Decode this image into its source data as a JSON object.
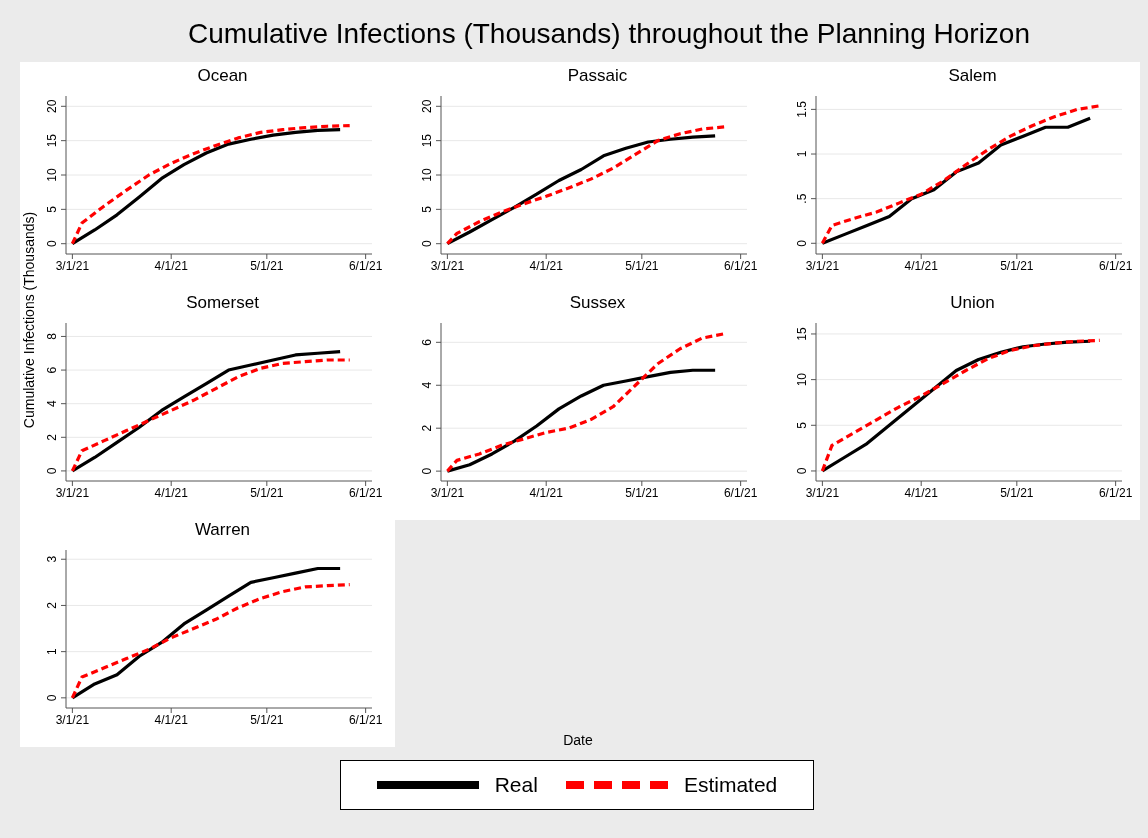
{
  "chart_data": [
    {
      "type": "other",
      "title": "Cumulative Infections (Thousands) throughout the Planning Horizon",
      "xlabel": "Date",
      "ylabel": "Cumulative Infections (Thousands)"
    },
    {
      "type": "line",
      "title": "Ocean",
      "legend": "bottom",
      "xlim": [
        "2021-02-27",
        "2021-06-03"
      ],
      "xticks": [
        {
          "value": "2021-03-01",
          "label": "3/1/21"
        },
        {
          "value": "2021-04-01",
          "label": "4/1/21"
        },
        {
          "value": "2021-05-01",
          "label": "5/1/21"
        },
        {
          "value": "2021-06-01",
          "label": "6/1/21"
        }
      ],
      "ylim": [
        -1.5,
        21.5
      ],
      "yticks": [
        0,
        5,
        10,
        15,
        20
      ],
      "grid": "y",
      "series": [
        {
          "name": "Real",
          "color": "#000000",
          "line_style": "solid",
          "x": [
            "2021-03-01",
            "2021-03-08",
            "2021-03-15",
            "2021-03-22",
            "2021-03-29",
            "2021-04-05",
            "2021-04-12",
            "2021-04-19",
            "2021-04-26",
            "2021-05-03",
            "2021-05-10",
            "2021-05-17",
            "2021-05-24"
          ],
          "values": [
            0,
            2,
            4.2,
            6.8,
            9.5,
            11.5,
            13.2,
            14.5,
            15.2,
            15.8,
            16.2,
            16.5,
            16.6
          ]
        },
        {
          "name": "Estimated",
          "color": "#ff0000",
          "line_style": "dashed",
          "x": [
            "2021-03-01",
            "2021-03-04",
            "2021-03-11",
            "2021-03-18",
            "2021-03-25",
            "2021-04-01",
            "2021-04-08",
            "2021-04-15",
            "2021-04-22",
            "2021-04-29",
            "2021-05-06",
            "2021-05-13",
            "2021-05-20",
            "2021-05-27"
          ],
          "values": [
            0,
            3,
            5.5,
            7.8,
            10,
            11.7,
            13.1,
            14.3,
            15.4,
            16.2,
            16.6,
            16.9,
            17.1,
            17.2
          ]
        }
      ]
    },
    {
      "type": "line",
      "title": "Passaic",
      "xlim": [
        "2021-02-27",
        "2021-06-03"
      ],
      "xticks": [
        {
          "value": "2021-03-01",
          "label": "3/1/21"
        },
        {
          "value": "2021-04-01",
          "label": "4/1/21"
        },
        {
          "value": "2021-05-01",
          "label": "5/1/21"
        },
        {
          "value": "2021-06-01",
          "label": "6/1/21"
        }
      ],
      "ylim": [
        -1.5,
        21.5
      ],
      "yticks": [
        0,
        5,
        10,
        15,
        20
      ],
      "grid": "y",
      "series": [
        {
          "color": "#000000",
          "line_style": "solid",
          "x": [
            "2021-03-01",
            "2021-03-08",
            "2021-03-15",
            "2021-03-22",
            "2021-03-29",
            "2021-04-05",
            "2021-04-12",
            "2021-04-19",
            "2021-04-26",
            "2021-05-03",
            "2021-05-10",
            "2021-05-17",
            "2021-05-24"
          ],
          "values": [
            0,
            1.7,
            3.5,
            5.3,
            7.2,
            9.2,
            10.8,
            12.8,
            13.9,
            14.8,
            15.2,
            15.5,
            15.7
          ]
        },
        {
          "color": "#ff0000",
          "line_style": "dashed",
          "x": [
            "2021-03-01",
            "2021-03-04",
            "2021-03-11",
            "2021-03-18",
            "2021-03-25",
            "2021-04-01",
            "2021-04-08",
            "2021-04-15",
            "2021-04-22",
            "2021-04-29",
            "2021-05-06",
            "2021-05-13",
            "2021-05-20",
            "2021-05-27"
          ],
          "values": [
            0,
            1.5,
            3.2,
            4.6,
            5.8,
            6.9,
            8.1,
            9.4,
            11,
            13,
            15,
            16,
            16.7,
            17
          ]
        }
      ]
    },
    {
      "type": "line",
      "title": "Salem",
      "xlim": [
        "2021-02-27",
        "2021-06-03"
      ],
      "xticks": [
        {
          "value": "2021-03-01",
          "label": "3/1/21"
        },
        {
          "value": "2021-04-01",
          "label": "4/1/21"
        },
        {
          "value": "2021-05-01",
          "label": "5/1/21"
        },
        {
          "value": "2021-06-01",
          "label": "6/1/21"
        }
      ],
      "ylim": [
        -0.12,
        1.65
      ],
      "yticks": [
        0,
        {
          "value": 0.5,
          "label": ".5"
        },
        1,
        1.5
      ],
      "grid": "y",
      "series": [
        {
          "color": "#000000",
          "line_style": "solid",
          "x": [
            "2021-03-01",
            "2021-03-08",
            "2021-03-15",
            "2021-03-22",
            "2021-03-29",
            "2021-04-05",
            "2021-04-12",
            "2021-04-19",
            "2021-04-26",
            "2021-05-03",
            "2021-05-10",
            "2021-05-17",
            "2021-05-24"
          ],
          "values": [
            0,
            0.1,
            0.2,
            0.3,
            0.5,
            0.6,
            0.8,
            0.9,
            1.1,
            1.2,
            1.3,
            1.3,
            1.4
          ]
        },
        {
          "color": "#ff0000",
          "line_style": "dashed",
          "x": [
            "2021-03-01",
            "2021-03-04",
            "2021-03-11",
            "2021-03-18",
            "2021-03-25",
            "2021-04-01",
            "2021-04-08",
            "2021-04-15",
            "2021-04-22",
            "2021-04-29",
            "2021-05-06",
            "2021-05-13",
            "2021-05-20",
            "2021-05-27"
          ],
          "values": [
            0,
            0.2,
            0.28,
            0.35,
            0.45,
            0.55,
            0.7,
            0.88,
            1.05,
            1.2,
            1.32,
            1.42,
            1.5,
            1.54
          ]
        }
      ]
    },
    {
      "type": "line",
      "title": "Somerset",
      "xlim": [
        "2021-02-27",
        "2021-06-03"
      ],
      "xticks": [
        {
          "value": "2021-03-01",
          "label": "3/1/21"
        },
        {
          "value": "2021-04-01",
          "label": "4/1/21"
        },
        {
          "value": "2021-05-01",
          "label": "5/1/21"
        },
        {
          "value": "2021-06-01",
          "label": "6/1/21"
        }
      ],
      "ylim": [
        -0.6,
        8.8
      ],
      "yticks": [
        0,
        2,
        4,
        6,
        8
      ],
      "grid": "y",
      "series": [
        {
          "color": "#000000",
          "line_style": "solid",
          "x": [
            "2021-03-01",
            "2021-03-08",
            "2021-03-15",
            "2021-03-22",
            "2021-03-29",
            "2021-04-05",
            "2021-04-12",
            "2021-04-19",
            "2021-04-26",
            "2021-05-03",
            "2021-05-10",
            "2021-05-17",
            "2021-05-24"
          ],
          "values": [
            0,
            0.8,
            1.7,
            2.6,
            3.6,
            4.4,
            5.2,
            6,
            6.3,
            6.6,
            6.9,
            7,
            7.1
          ]
        },
        {
          "color": "#ff0000",
          "line_style": "dashed",
          "x": [
            "2021-03-01",
            "2021-03-04",
            "2021-03-11",
            "2021-03-18",
            "2021-03-25",
            "2021-04-01",
            "2021-04-08",
            "2021-04-15",
            "2021-04-22",
            "2021-04-29",
            "2021-05-06",
            "2021-05-13",
            "2021-05-20",
            "2021-05-27"
          ],
          "values": [
            0,
            1.2,
            1.8,
            2.4,
            3,
            3.6,
            4.2,
            4.9,
            5.6,
            6.1,
            6.4,
            6.5,
            6.6,
            6.6
          ]
        }
      ]
    },
    {
      "type": "line",
      "title": "Sussex",
      "xlim": [
        "2021-02-27",
        "2021-06-03"
      ],
      "xticks": [
        {
          "value": "2021-03-01",
          "label": "3/1/21"
        },
        {
          "value": "2021-04-01",
          "label": "4/1/21"
        },
        {
          "value": "2021-05-01",
          "label": "5/1/21"
        },
        {
          "value": "2021-06-01",
          "label": "6/1/21"
        }
      ],
      "ylim": [
        -0.46,
        6.9
      ],
      "yticks": [
        0,
        2,
        4,
        6
      ],
      "grid": "y",
      "series": [
        {
          "color": "#000000",
          "line_style": "solid",
          "x": [
            "2021-03-01",
            "2021-03-08",
            "2021-03-15",
            "2021-03-22",
            "2021-03-29",
            "2021-04-05",
            "2021-04-12",
            "2021-04-19",
            "2021-04-26",
            "2021-05-03",
            "2021-05-10",
            "2021-05-17",
            "2021-05-24"
          ],
          "values": [
            0,
            0.3,
            0.8,
            1.4,
            2.1,
            2.9,
            3.5,
            4,
            4.2,
            4.4,
            4.6,
            4.7,
            4.7
          ]
        },
        {
          "color": "#ff0000",
          "line_style": "dashed",
          "x": [
            "2021-03-01",
            "2021-03-04",
            "2021-03-11",
            "2021-03-18",
            "2021-03-25",
            "2021-04-01",
            "2021-04-08",
            "2021-04-15",
            "2021-04-22",
            "2021-04-29",
            "2021-05-06",
            "2021-05-13",
            "2021-05-20",
            "2021-05-27"
          ],
          "values": [
            0,
            0.5,
            0.8,
            1.2,
            1.5,
            1.8,
            2,
            2.4,
            3,
            4,
            5,
            5.7,
            6.2,
            6.4
          ]
        }
      ]
    },
    {
      "type": "line",
      "title": "Union",
      "xlim": [
        "2021-02-27",
        "2021-06-03"
      ],
      "xticks": [
        {
          "value": "2021-03-01",
          "label": "3/1/21"
        },
        {
          "value": "2021-04-01",
          "label": "4/1/21"
        },
        {
          "value": "2021-05-01",
          "label": "5/1/21"
        },
        {
          "value": "2021-06-01",
          "label": "6/1/21"
        }
      ],
      "ylim": [
        -1.1,
        16.2
      ],
      "yticks": [
        0,
        5,
        10,
        15
      ],
      "grid": "y",
      "series": [
        {
          "color": "#000000",
          "line_style": "solid",
          "x": [
            "2021-03-01",
            "2021-03-08",
            "2021-03-15",
            "2021-03-22",
            "2021-03-29",
            "2021-04-05",
            "2021-04-12",
            "2021-04-19",
            "2021-04-26",
            "2021-05-03",
            "2021-05-10",
            "2021-05-17",
            "2021-05-24"
          ],
          "values": [
            0,
            1.5,
            3,
            5,
            7,
            9,
            11,
            12.2,
            13,
            13.6,
            13.9,
            14.1,
            14.2
          ]
        },
        {
          "color": "#ff0000",
          "line_style": "dashed",
          "x": [
            "2021-03-01",
            "2021-03-04",
            "2021-03-11",
            "2021-03-18",
            "2021-03-25",
            "2021-04-01",
            "2021-04-08",
            "2021-04-15",
            "2021-04-22",
            "2021-04-29",
            "2021-05-06",
            "2021-05-13",
            "2021-05-20",
            "2021-05-27"
          ],
          "values": [
            0,
            2.8,
            4.2,
            5.6,
            7,
            8.2,
            9.6,
            11,
            12.3,
            13.2,
            13.7,
            14,
            14.2,
            14.3
          ]
        }
      ]
    },
    {
      "type": "line",
      "title": "Warren",
      "xlim": [
        "2021-02-27",
        "2021-06-03"
      ],
      "xticks": [
        {
          "value": "2021-03-01",
          "label": "3/1/21"
        },
        {
          "value": "2021-04-01",
          "label": "4/1/21"
        },
        {
          "value": "2021-05-01",
          "label": "5/1/21"
        },
        {
          "value": "2021-06-01",
          "label": "6/1/21"
        }
      ],
      "ylim": [
        -0.22,
        3.2
      ],
      "yticks": [
        0,
        1,
        2,
        3
      ],
      "grid": "y",
      "series": [
        {
          "color": "#000000",
          "line_style": "solid",
          "x": [
            "2021-03-01",
            "2021-03-08",
            "2021-03-15",
            "2021-03-22",
            "2021-03-29",
            "2021-04-05",
            "2021-04-12",
            "2021-04-19",
            "2021-04-26",
            "2021-05-03",
            "2021-05-10",
            "2021-05-17",
            "2021-05-24"
          ],
          "values": [
            0,
            0.3,
            0.5,
            0.9,
            1.2,
            1.6,
            1.9,
            2.2,
            2.5,
            2.6,
            2.7,
            2.8,
            2.8
          ]
        },
        {
          "color": "#ff0000",
          "line_style": "dashed",
          "x": [
            "2021-03-01",
            "2021-03-04",
            "2021-03-11",
            "2021-03-18",
            "2021-03-25",
            "2021-04-01",
            "2021-04-08",
            "2021-04-15",
            "2021-04-22",
            "2021-04-29",
            "2021-05-06",
            "2021-05-13",
            "2021-05-20",
            "2021-05-27"
          ],
          "values": [
            0,
            0.45,
            0.65,
            0.85,
            1.05,
            1.3,
            1.5,
            1.7,
            1.95,
            2.15,
            2.3,
            2.4,
            2.43,
            2.45
          ]
        }
      ]
    }
  ]
}
